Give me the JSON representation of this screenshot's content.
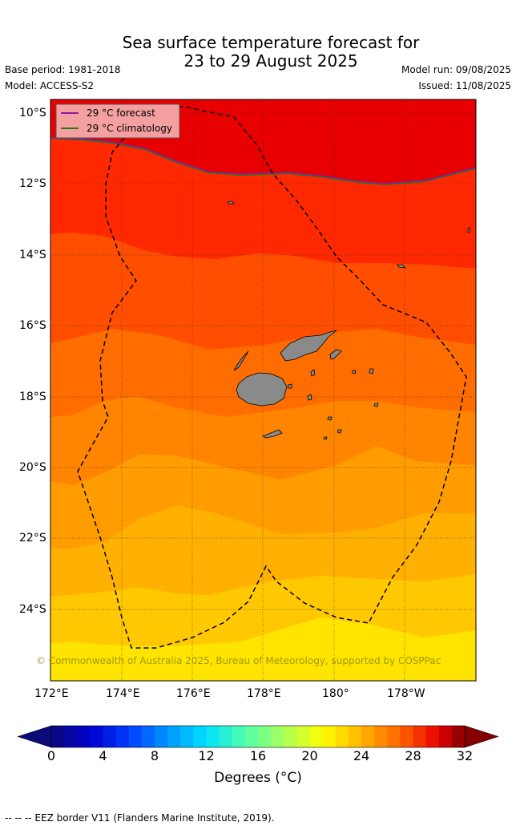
{
  "title_line1": "Sea surface temperature forecast for",
  "title_line2": "23 to 29 August 2025",
  "base_period": "Base period: 1981-2018",
  "model": "Model: ACCESS-S2",
  "model_run": "Model run: 09/08/2025",
  "issued": "Issued: 11/08/2025",
  "legend": {
    "forecast": "29 °C  forecast",
    "climatology": "29 °C  climatology",
    "forecast_color": "#8b1a9a",
    "climatology_color": "#1e7a1e"
  },
  "lat_labels": [
    "10°S",
    "12°S",
    "14°S",
    "16°S",
    "18°S",
    "20°S",
    "22°S",
    "24°S"
  ],
  "lon_labels": [
    "172°E",
    "174°E",
    "176°E",
    "178°E",
    "180°",
    "178°W"
  ],
  "copyright": "© Commonwealth of Australia 2025, Bureau of Meteorology, supported by COSPPac",
  "colorbar": {
    "ticks": [
      "0",
      "4",
      "8",
      "12",
      "16",
      "20",
      "24",
      "28",
      "32"
    ],
    "label": "Degrees (°C)",
    "min": 0,
    "max": 32,
    "step": 1
  },
  "footer": "--  --  -- EEZ border V11 (Flanders Marine Institute, 2019)."
}
